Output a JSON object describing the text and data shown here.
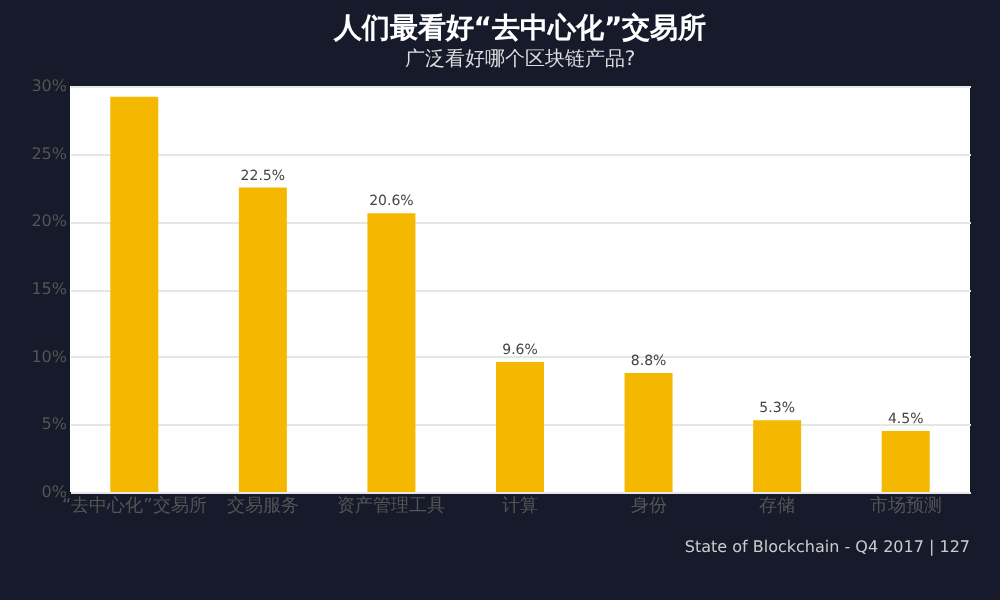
{
  "chart_data": {
    "type": "bar",
    "title": "人们最看好“去中心化”交易所",
    "subtitle": "广泛看好哪个区块链产品?",
    "categories": [
      "“去中心化”交易所",
      "交易服务",
      "资产管理工具",
      "计算",
      "身份",
      "存储",
      "市场预测"
    ],
    "values": [
      29.2,
      22.5,
      20.6,
      9.6,
      8.8,
      5.3,
      4.5
    ],
    "value_labels": [
      null,
      "22.5%",
      "20.6%",
      "9.6%",
      "8.8%",
      "5.3%",
      "4.5%"
    ],
    "color": "#f5b800",
    "ylim": [
      0,
      30
    ],
    "yticks": [
      {
        "value": 0,
        "label": "0%"
      },
      {
        "value": 5,
        "label": "5%"
      },
      {
        "value": 10,
        "label": "10%"
      },
      {
        "value": 15,
        "label": "15%"
      },
      {
        "value": 20,
        "label": "20%"
      },
      {
        "value": 25,
        "label": "25%"
      },
      {
        "value": 30,
        "label": "30%"
      }
    ],
    "grid": "y",
    "annotations": [
      "State of Blockchain - Q4 2017 | 127"
    ]
  }
}
